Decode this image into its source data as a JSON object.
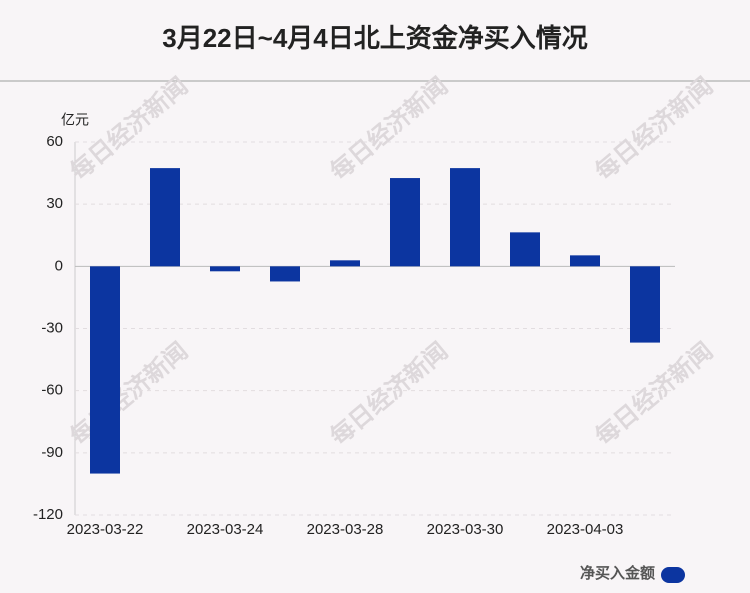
{
  "chart_data": {
    "type": "bar",
    "title": "3月22日~4月4日北上资金净买入情况",
    "y_unit": "亿元",
    "watermark": "每日经济新闻",
    "categories": [
      "2023-03-22",
      null,
      "2023-03-24",
      null,
      "2023-03-28",
      null,
      "2023-03-30",
      null,
      "2023-04-03",
      null
    ],
    "series": [
      {
        "name": "净买入金额",
        "color": "#0c35a0",
        "values": [
          -100,
          47.4,
          -2.4,
          -7.3,
          2.9,
          42.6,
          47.4,
          16.4,
          5.3,
          -36.8
        ]
      }
    ],
    "ylim": [
      -120,
      60
    ],
    "yticks": [
      -120,
      -90,
      -60,
      -30,
      0,
      30,
      60
    ],
    "grid": true
  }
}
